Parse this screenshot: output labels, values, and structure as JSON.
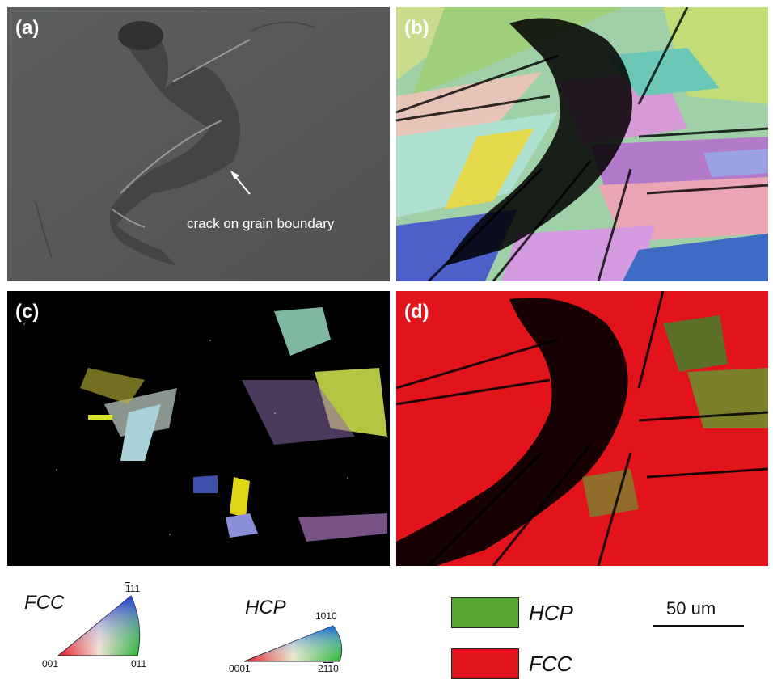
{
  "panels": {
    "a": {
      "label": "(a)",
      "annotation": "crack on grain boundary"
    },
    "b": {
      "label": "(b)"
    },
    "c": {
      "label": "(c)"
    },
    "d": {
      "label": "(d)"
    }
  },
  "legend": {
    "fcc": {
      "title": "FCC",
      "pole_bottom_left": "001",
      "pole_bottom_right": "011",
      "pole_top_bar": "1",
      "pole_top_rest": "11"
    },
    "hcp": {
      "title": "HCP",
      "pole_bottom_left": "0001",
      "pole_top_a": "10",
      "pole_top_bar": "1",
      "pole_top_b": "0",
      "pole_br_a": "2",
      "pole_br_bar1": "1",
      "pole_br_bar2": "1",
      "pole_br_b": "0"
    },
    "phases": [
      {
        "label": "HCP",
        "color": "#5aa632"
      },
      {
        "label": "FCC",
        "color": "#e3131b"
      }
    ],
    "scale_bar": "50 um"
  }
}
